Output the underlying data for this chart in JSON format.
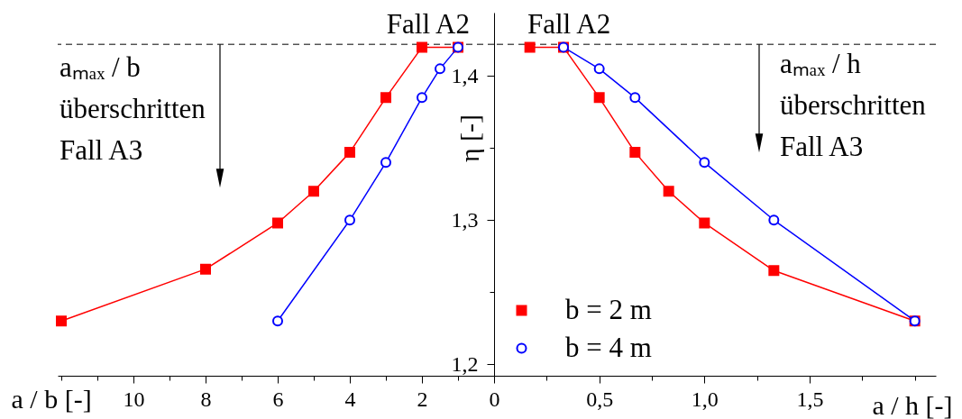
{
  "chart_data": [
    {
      "type": "line",
      "xlabel": "a / b [-]",
      "xlim": [
        12.1,
        0
      ],
      "xticks": [
        {
          "value": 12,
          "label": null
        },
        {
          "value": 11,
          "label": null
        },
        10,
        {
          "value": 9,
          "label": null
        },
        8,
        {
          "value": 7,
          "label": null
        },
        6,
        {
          "value": 5,
          "label": null
        },
        4,
        {
          "value": 3,
          "label": null
        },
        2,
        {
          "value": 1,
          "label": null
        }
      ],
      "ylim": [
        1.192,
        1.444
      ],
      "tick_labels": "x",
      "line_style": "solid",
      "series": [
        {
          "color": "#ff0000",
          "marker": "square",
          "x": [
            12,
            8,
            6,
            5,
            4,
            3,
            2,
            1
          ],
          "values": [
            1.23,
            1.266,
            1.298,
            1.32,
            1.347,
            1.385,
            1.42,
            1.42
          ]
        },
        {
          "color": "#0000ff",
          "marker": "circle",
          "x": [
            6,
            4,
            3,
            2,
            1.5,
            1
          ],
          "values": [
            1.23,
            1.3,
            1.34,
            1.385,
            1.405,
            1.42
          ]
        }
      ],
      "ref_lines": [
        {
          "axis": "y",
          "value": 1.422,
          "label": "Fall A2",
          "line_style": "dashed",
          "color": "#000000"
        }
      ],
      "annotations": [
        {
          "text": "aₘₐₓ / b\nüberschritten\nFall A3",
          "x": 7.6,
          "y": 1.422
        }
      ]
    },
    {
      "type": "line",
      "xlabel": "a / h [-]",
      "ylabel": "η [-]",
      "xlim": [
        0,
        2.1
      ],
      "xticks": [
        0,
        {
          "value": 0.25,
          "label": null
        },
        {
          "value": 0.5,
          "label": "0,5"
        },
        {
          "value": 0.75,
          "label": null
        },
        {
          "value": 1,
          "label": "1,0"
        },
        {
          "value": 1.25,
          "label": null
        },
        {
          "value": 1.5,
          "label": "1,5"
        },
        {
          "value": 1.75,
          "label": null
        },
        {
          "value": 2,
          "label": null
        }
      ],
      "ylim": [
        1.192,
        1.444
      ],
      "yticks": [
        {
          "value": 1.2,
          "label": "1,2"
        },
        {
          "value": 1.25,
          "label": null
        },
        {
          "value": 1.3,
          "label": "1,3"
        },
        {
          "value": 1.35,
          "label": null
        },
        {
          "value": 1.4,
          "label": "1,4"
        }
      ],
      "legend": "bottom left",
      "line_style": "solid",
      "series": [
        {
          "name": "b = 2 m",
          "color": "#ff0000",
          "marker": "square",
          "x": [
            0.17,
            0.33,
            0.5,
            0.67,
            0.83,
            1.0,
            1.33,
            2.0
          ],
          "values": [
            1.42,
            1.42,
            1.385,
            1.347,
            1.32,
            1.298,
            1.265,
            1.23
          ]
        },
        {
          "name": "b = 4 m",
          "color": "#0000ff",
          "marker": "circle",
          "x": [
            0.33,
            0.5,
            0.67,
            1.0,
            1.33,
            2.0
          ],
          "values": [
            1.42,
            1.405,
            1.385,
            1.34,
            1.3,
            1.23
          ]
        }
      ],
      "ref_lines": [
        {
          "axis": "y",
          "value": 1.422,
          "label": "Fall A2",
          "line_style": "dashed",
          "color": "#000000"
        }
      ],
      "annotations": [
        {
          "text": "aₘₐₓ / h\nüberschritten\nFall A3",
          "x": 1.26,
          "y": 1.422
        }
      ]
    }
  ]
}
